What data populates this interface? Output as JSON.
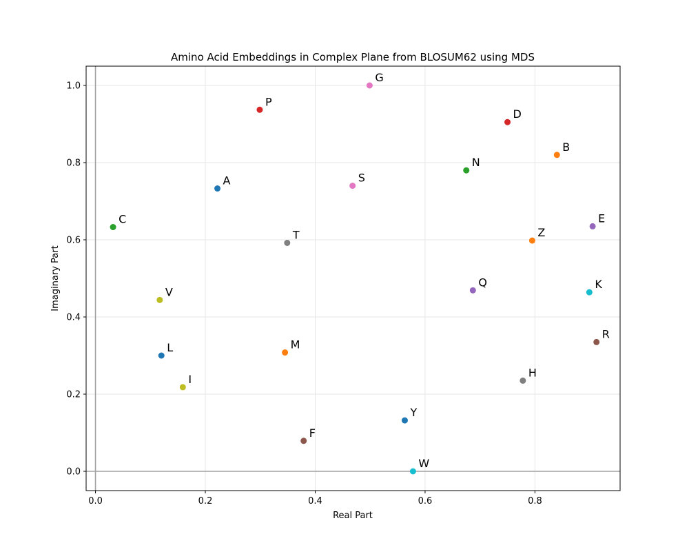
{
  "chart_data": {
    "type": "scatter",
    "title": "Amino Acid Embeddings in Complex Plane from BLOSUM62 using MDS",
    "xlabel": "Real Part",
    "ylabel": "Imaginary Part",
    "xlim": [
      -0.017,
      0.955
    ],
    "ylim": [
      -0.05,
      1.05
    ],
    "x_ticks": [
      0.0,
      0.2,
      0.4,
      0.6,
      0.8
    ],
    "x_tick_labels": [
      "0.0",
      "0.2",
      "0.4",
      "0.6",
      "0.8"
    ],
    "y_ticks": [
      0.0,
      0.2,
      0.4,
      0.6,
      0.8,
      1.0
    ],
    "y_tick_labels": [
      "0.0",
      "0.2",
      "0.4",
      "0.6",
      "0.8",
      "1.0"
    ],
    "grid": true,
    "reference_lines": {
      "x": 0,
      "y": 0
    },
    "points": [
      {
        "label": "A",
        "x": 0.222,
        "y": 0.733,
        "color": "#1f77b4"
      },
      {
        "label": "B",
        "x": 0.84,
        "y": 0.82,
        "color": "#ff7f0e"
      },
      {
        "label": "C",
        "x": 0.032,
        "y": 0.633,
        "color": "#2ca02c"
      },
      {
        "label": "D",
        "x": 0.75,
        "y": 0.905,
        "color": "#d62728"
      },
      {
        "label": "E",
        "x": 0.905,
        "y": 0.635,
        "color": "#9467bd"
      },
      {
        "label": "F",
        "x": 0.379,
        "y": 0.079,
        "color": "#8c564b"
      },
      {
        "label": "G",
        "x": 0.499,
        "y": 1.0,
        "color": "#e377c2"
      },
      {
        "label": "H",
        "x": 0.778,
        "y": 0.235,
        "color": "#7f7f7f"
      },
      {
        "label": "I",
        "x": 0.159,
        "y": 0.218,
        "color": "#bcbd22"
      },
      {
        "label": "K",
        "x": 0.899,
        "y": 0.464,
        "color": "#17becf"
      },
      {
        "label": "L",
        "x": 0.12,
        "y": 0.3,
        "color": "#1f77b4"
      },
      {
        "label": "M",
        "x": 0.345,
        "y": 0.308,
        "color": "#ff7f0e"
      },
      {
        "label": "N",
        "x": 0.675,
        "y": 0.78,
        "color": "#2ca02c"
      },
      {
        "label": "P",
        "x": 0.299,
        "y": 0.937,
        "color": "#d62728"
      },
      {
        "label": "Q",
        "x": 0.687,
        "y": 0.469,
        "color": "#9467bd"
      },
      {
        "label": "R",
        "x": 0.912,
        "y": 0.335,
        "color": "#8c564b"
      },
      {
        "label": "S",
        "x": 0.468,
        "y": 0.74,
        "color": "#e377c2"
      },
      {
        "label": "T",
        "x": 0.349,
        "y": 0.592,
        "color": "#7f7f7f"
      },
      {
        "label": "V",
        "x": 0.117,
        "y": 0.444,
        "color": "#bcbd22"
      },
      {
        "label": "W",
        "x": 0.578,
        "y": 0.0,
        "color": "#17becf"
      },
      {
        "label": "Y",
        "x": 0.563,
        "y": 0.132,
        "color": "#1f77b4"
      },
      {
        "label": "Z",
        "x": 0.795,
        "y": 0.598,
        "color": "#ff7f0e"
      }
    ]
  }
}
